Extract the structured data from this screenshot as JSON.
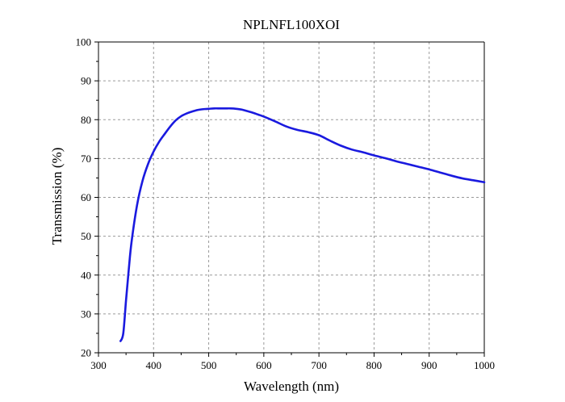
{
  "chart_data": {
    "type": "line",
    "title": "NPLNFL100XOI",
    "xlabel": "Wavelength (nm)",
    "ylabel": "Transmission (%)",
    "xlim": [
      300,
      1000
    ],
    "ylim": [
      20,
      100
    ],
    "xticks": [
      300,
      400,
      500,
      600,
      700,
      800,
      900,
      1000
    ],
    "yticks": [
      20,
      30,
      40,
      50,
      60,
      70,
      80,
      90,
      100
    ],
    "grid": true,
    "line_color": "#1a1adf",
    "series": [
      {
        "x": [
          340,
          345,
          350,
          355,
          360,
          370,
          380,
          390,
          400,
          410,
          420,
          430,
          440,
          450,
          460,
          470,
          480,
          490,
          500,
          510,
          520,
          530,
          540,
          550,
          560,
          570,
          580,
          590,
          600,
          620,
          640,
          660,
          680,
          700,
          720,
          740,
          760,
          780,
          800,
          820,
          840,
          860,
          880,
          900,
          920,
          940,
          960,
          980,
          1000
        ],
        "y": [
          23.0,
          25.0,
          33.5,
          41.5,
          48.5,
          58.0,
          64.3,
          68.6,
          71.8,
          74.3,
          76.3,
          78.2,
          79.8,
          80.9,
          81.6,
          82.1,
          82.5,
          82.7,
          82.8,
          82.9,
          82.9,
          82.9,
          82.9,
          82.8,
          82.6,
          82.2,
          81.8,
          81.3,
          80.8,
          79.6,
          78.3,
          77.4,
          76.8,
          76.0,
          74.6,
          73.3,
          72.3,
          71.6,
          70.8,
          70.1,
          69.3,
          68.6,
          67.9,
          67.2,
          66.4,
          65.6,
          64.9,
          64.4,
          63.9
        ]
      }
    ]
  }
}
